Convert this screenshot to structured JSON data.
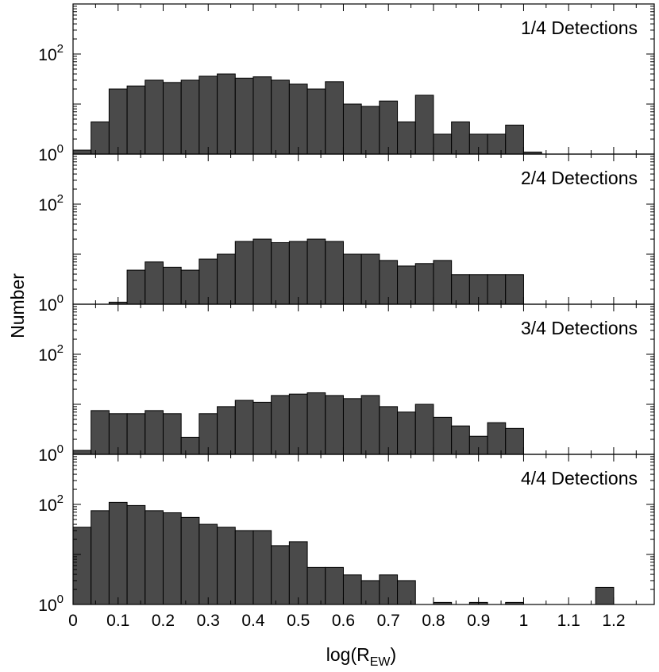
{
  "chart_data": {
    "type": "bar",
    "xlabel": "log(R",
    "xlabel_sub": "EW",
    "xlabel_close": ")",
    "ylabel": "Number",
    "yscale": "log",
    "ylim": [
      1,
      1000
    ],
    "xlim": [
      0,
      1.29
    ],
    "bin_width": 0.04,
    "x_ticks": [
      "0",
      "0.1",
      "0.2",
      "0.3",
      "0.4",
      "0.5",
      "0.6",
      "0.7",
      "0.8",
      "0.9",
      "1",
      "1.1",
      "1.2"
    ],
    "x_tick_values": [
      0,
      0.1,
      0.2,
      0.3,
      0.4,
      0.5,
      0.6,
      0.7,
      0.8,
      0.9,
      1.0,
      1.1,
      1.2
    ],
    "y_ticks": [
      {
        "value": 1,
        "base": "10",
        "exp": "0"
      },
      {
        "value": 100,
        "base": "10",
        "exp": "2"
      }
    ],
    "panels": [
      {
        "label": "1/4 Detections",
        "bins": [
          {
            "x": 0.0,
            "count": 1.2
          },
          {
            "x": 0.04,
            "count": 4.4
          },
          {
            "x": 0.08,
            "count": 20
          },
          {
            "x": 0.12,
            "count": 23
          },
          {
            "x": 0.16,
            "count": 30
          },
          {
            "x": 0.2,
            "count": 27
          },
          {
            "x": 0.24,
            "count": 30
          },
          {
            "x": 0.28,
            "count": 36
          },
          {
            "x": 0.32,
            "count": 40
          },
          {
            "x": 0.36,
            "count": 33
          },
          {
            "x": 0.4,
            "count": 35
          },
          {
            "x": 0.44,
            "count": 30
          },
          {
            "x": 0.48,
            "count": 25
          },
          {
            "x": 0.52,
            "count": 20
          },
          {
            "x": 0.56,
            "count": 28
          },
          {
            "x": 0.6,
            "count": 10
          },
          {
            "x": 0.64,
            "count": 9
          },
          {
            "x": 0.68,
            "count": 11.5
          },
          {
            "x": 0.72,
            "count": 4.4
          },
          {
            "x": 0.76,
            "count": 15
          },
          {
            "x": 0.8,
            "count": 2.5
          },
          {
            "x": 0.84,
            "count": 4.4
          },
          {
            "x": 0.88,
            "count": 2.5
          },
          {
            "x": 0.92,
            "count": 2.5
          },
          {
            "x": 0.96,
            "count": 3.8
          },
          {
            "x": 1.0,
            "count": 1.1
          }
        ]
      },
      {
        "label": "2/4 Detections",
        "bins": [
          {
            "x": 0.08,
            "count": 1.1
          },
          {
            "x": 0.12,
            "count": 4.8
          },
          {
            "x": 0.16,
            "count": 7
          },
          {
            "x": 0.2,
            "count": 5.5
          },
          {
            "x": 0.24,
            "count": 4.8
          },
          {
            "x": 0.28,
            "count": 8
          },
          {
            "x": 0.32,
            "count": 10
          },
          {
            "x": 0.36,
            "count": 18
          },
          {
            "x": 0.4,
            "count": 20
          },
          {
            "x": 0.44,
            "count": 17
          },
          {
            "x": 0.48,
            "count": 18
          },
          {
            "x": 0.52,
            "count": 20
          },
          {
            "x": 0.56,
            "count": 18
          },
          {
            "x": 0.6,
            "count": 10
          },
          {
            "x": 0.64,
            "count": 10
          },
          {
            "x": 0.68,
            "count": 7.5
          },
          {
            "x": 0.72,
            "count": 5.8
          },
          {
            "x": 0.76,
            "count": 6.5
          },
          {
            "x": 0.8,
            "count": 7.5
          },
          {
            "x": 0.84,
            "count": 3.9
          },
          {
            "x": 0.88,
            "count": 3.9
          },
          {
            "x": 0.92,
            "count": 3.9
          },
          {
            "x": 0.96,
            "count": 3.9
          }
        ]
      },
      {
        "label": "3/4 Detections",
        "bins": [
          {
            "x": 0.0,
            "count": 1.2
          },
          {
            "x": 0.04,
            "count": 7.5
          },
          {
            "x": 0.08,
            "count": 6.5
          },
          {
            "x": 0.12,
            "count": 6.5
          },
          {
            "x": 0.16,
            "count": 7.5
          },
          {
            "x": 0.2,
            "count": 6.5
          },
          {
            "x": 0.24,
            "count": 2.2
          },
          {
            "x": 0.28,
            "count": 6.5
          },
          {
            "x": 0.32,
            "count": 9
          },
          {
            "x": 0.36,
            "count": 12
          },
          {
            "x": 0.4,
            "count": 11
          },
          {
            "x": 0.44,
            "count": 15
          },
          {
            "x": 0.48,
            "count": 16
          },
          {
            "x": 0.52,
            "count": 17
          },
          {
            "x": 0.56,
            "count": 15
          },
          {
            "x": 0.6,
            "count": 13
          },
          {
            "x": 0.64,
            "count": 15
          },
          {
            "x": 0.68,
            "count": 9
          },
          {
            "x": 0.72,
            "count": 7
          },
          {
            "x": 0.76,
            "count": 10
          },
          {
            "x": 0.8,
            "count": 5.5
          },
          {
            "x": 0.84,
            "count": 3.7
          },
          {
            "x": 0.88,
            "count": 2.3
          },
          {
            "x": 0.92,
            "count": 4.3
          },
          {
            "x": 0.96,
            "count": 3.3
          }
        ]
      },
      {
        "label": "4/4 Detections",
        "bins": [
          {
            "x": 0.0,
            "count": 35
          },
          {
            "x": 0.04,
            "count": 75
          },
          {
            "x": 0.08,
            "count": 110
          },
          {
            "x": 0.12,
            "count": 95
          },
          {
            "x": 0.16,
            "count": 75
          },
          {
            "x": 0.2,
            "count": 68
          },
          {
            "x": 0.24,
            "count": 55
          },
          {
            "x": 0.28,
            "count": 40
          },
          {
            "x": 0.32,
            "count": 35
          },
          {
            "x": 0.36,
            "count": 30
          },
          {
            "x": 0.4,
            "count": 30
          },
          {
            "x": 0.44,
            "count": 15
          },
          {
            "x": 0.48,
            "count": 18
          },
          {
            "x": 0.52,
            "count": 5.5
          },
          {
            "x": 0.56,
            "count": 5.5
          },
          {
            "x": 0.6,
            "count": 3.9
          },
          {
            "x": 0.64,
            "count": 3.0
          },
          {
            "x": 0.68,
            "count": 3.9
          },
          {
            "x": 0.72,
            "count": 3.0
          },
          {
            "x": 0.8,
            "count": 1.1
          },
          {
            "x": 0.88,
            "count": 1.1
          },
          {
            "x": 0.96,
            "count": 1.1
          },
          {
            "x": 1.16,
            "count": 2.2
          }
        ]
      }
    ]
  }
}
